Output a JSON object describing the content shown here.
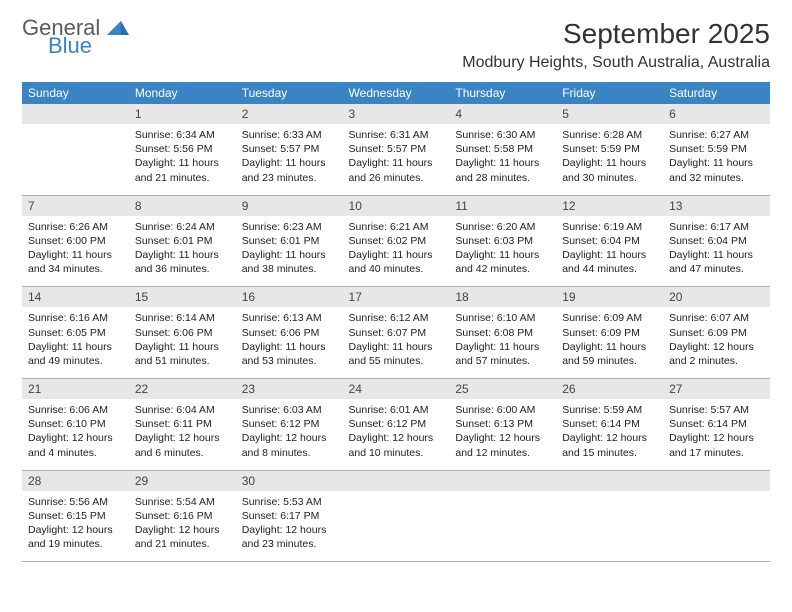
{
  "logo": {
    "general": "General",
    "blue": "Blue"
  },
  "header": {
    "title": "September 2025",
    "location": "Modbury Heights, South Australia, Australia"
  },
  "colors": {
    "header_bg": "#3a84c4",
    "header_text": "#ffffff",
    "daynum_bg": "#e7e7e7",
    "border": "#b0b0b0"
  },
  "day_names": [
    "Sunday",
    "Monday",
    "Tuesday",
    "Wednesday",
    "Thursday",
    "Friday",
    "Saturday"
  ],
  "weeks": [
    {
      "nums": [
        "",
        "1",
        "2",
        "3",
        "4",
        "5",
        "6"
      ],
      "cells": [
        "",
        "Sunrise: 6:34 AM\nSunset: 5:56 PM\nDaylight: 11 hours and 21 minutes.",
        "Sunrise: 6:33 AM\nSunset: 5:57 PM\nDaylight: 11 hours and 23 minutes.",
        "Sunrise: 6:31 AM\nSunset: 5:57 PM\nDaylight: 11 hours and 26 minutes.",
        "Sunrise: 6:30 AM\nSunset: 5:58 PM\nDaylight: 11 hours and 28 minutes.",
        "Sunrise: 6:28 AM\nSunset: 5:59 PM\nDaylight: 11 hours and 30 minutes.",
        "Sunrise: 6:27 AM\nSunset: 5:59 PM\nDaylight: 11 hours and 32 minutes."
      ]
    },
    {
      "nums": [
        "7",
        "8",
        "9",
        "10",
        "11",
        "12",
        "13"
      ],
      "cells": [
        "Sunrise: 6:26 AM\nSunset: 6:00 PM\nDaylight: 11 hours and 34 minutes.",
        "Sunrise: 6:24 AM\nSunset: 6:01 PM\nDaylight: 11 hours and 36 minutes.",
        "Sunrise: 6:23 AM\nSunset: 6:01 PM\nDaylight: 11 hours and 38 minutes.",
        "Sunrise: 6:21 AM\nSunset: 6:02 PM\nDaylight: 11 hours and 40 minutes.",
        "Sunrise: 6:20 AM\nSunset: 6:03 PM\nDaylight: 11 hours and 42 minutes.",
        "Sunrise: 6:19 AM\nSunset: 6:04 PM\nDaylight: 11 hours and 44 minutes.",
        "Sunrise: 6:17 AM\nSunset: 6:04 PM\nDaylight: 11 hours and 47 minutes."
      ]
    },
    {
      "nums": [
        "14",
        "15",
        "16",
        "17",
        "18",
        "19",
        "20"
      ],
      "cells": [
        "Sunrise: 6:16 AM\nSunset: 6:05 PM\nDaylight: 11 hours and 49 minutes.",
        "Sunrise: 6:14 AM\nSunset: 6:06 PM\nDaylight: 11 hours and 51 minutes.",
        "Sunrise: 6:13 AM\nSunset: 6:06 PM\nDaylight: 11 hours and 53 minutes.",
        "Sunrise: 6:12 AM\nSunset: 6:07 PM\nDaylight: 11 hours and 55 minutes.",
        "Sunrise: 6:10 AM\nSunset: 6:08 PM\nDaylight: 11 hours and 57 minutes.",
        "Sunrise: 6:09 AM\nSunset: 6:09 PM\nDaylight: 11 hours and 59 minutes.",
        "Sunrise: 6:07 AM\nSunset: 6:09 PM\nDaylight: 12 hours and 2 minutes."
      ]
    },
    {
      "nums": [
        "21",
        "22",
        "23",
        "24",
        "25",
        "26",
        "27"
      ],
      "cells": [
        "Sunrise: 6:06 AM\nSunset: 6:10 PM\nDaylight: 12 hours and 4 minutes.",
        "Sunrise: 6:04 AM\nSunset: 6:11 PM\nDaylight: 12 hours and 6 minutes.",
        "Sunrise: 6:03 AM\nSunset: 6:12 PM\nDaylight: 12 hours and 8 minutes.",
        "Sunrise: 6:01 AM\nSunset: 6:12 PM\nDaylight: 12 hours and 10 minutes.",
        "Sunrise: 6:00 AM\nSunset: 6:13 PM\nDaylight: 12 hours and 12 minutes.",
        "Sunrise: 5:59 AM\nSunset: 6:14 PM\nDaylight: 12 hours and 15 minutes.",
        "Sunrise: 5:57 AM\nSunset: 6:14 PM\nDaylight: 12 hours and 17 minutes."
      ]
    },
    {
      "nums": [
        "28",
        "29",
        "30",
        "",
        "",
        "",
        ""
      ],
      "cells": [
        "Sunrise: 5:56 AM\nSunset: 6:15 PM\nDaylight: 12 hours and 19 minutes.",
        "Sunrise: 5:54 AM\nSunset: 6:16 PM\nDaylight: 12 hours and 21 minutes.",
        "Sunrise: 5:53 AM\nSunset: 6:17 PM\nDaylight: 12 hours and 23 minutes.",
        "",
        "",
        "",
        ""
      ]
    }
  ]
}
